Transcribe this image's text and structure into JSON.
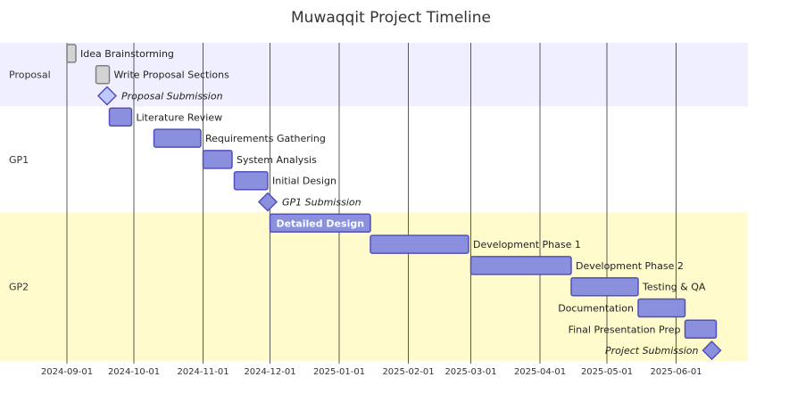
{
  "title": "Muwaqqit Project Timeline",
  "axis": {
    "ticks": [
      "2024-09-01",
      "2024-10-01",
      "2024-11-01",
      "2024-12-01",
      "2025-01-01",
      "2025-02-01",
      "2025-03-01",
      "2025-04-01",
      "2025-05-01",
      "2025-06-01"
    ]
  },
  "colors": {
    "section_proposal": "#efefff",
    "section_gp1": "#ffffff",
    "section_gp2": "#fffbcc",
    "done_fill": "#d3d3d3",
    "done_stroke": "#808080",
    "active_fill": "#8a90dd",
    "active_stroke": "#534fbc",
    "milestone_proposal_fill": "#bfc7ff"
  },
  "sections": [
    {
      "name": "Proposal",
      "color_key": "section_proposal"
    },
    {
      "name": "GP1",
      "color_key": "section_gp1"
    },
    {
      "name": "GP2",
      "color_key": "section_gp2"
    }
  ],
  "chart_data": {
    "type": "gantt",
    "tasks": [
      {
        "name": "Idea Brainstorming",
        "section": "Proposal",
        "start": "2024-09-01",
        "end": "2024-09-05",
        "status": "done",
        "milestone": false
      },
      {
        "name": "Write Proposal Sections",
        "section": "Proposal",
        "start": "2024-09-14",
        "end": "2024-09-20",
        "status": "done",
        "milestone": false
      },
      {
        "name": "Proposal Submission",
        "section": "Proposal",
        "date": "2024-09-19",
        "status": "done",
        "milestone": true
      },
      {
        "name": "Literature Review",
        "section": "GP1",
        "start": "2024-09-20",
        "end": "2024-09-30",
        "status": "active",
        "milestone": false
      },
      {
        "name": "Requirements Gathering",
        "section": "GP1",
        "start": "2024-10-10",
        "end": "2024-10-31",
        "status": "active",
        "milestone": false
      },
      {
        "name": "System Analysis",
        "section": "GP1",
        "start": "2024-11-01",
        "end": "2024-11-14",
        "status": "active",
        "milestone": false
      },
      {
        "name": "Initial Design",
        "section": "GP1",
        "start": "2024-11-15",
        "end": "2024-11-30",
        "status": "active",
        "milestone": false
      },
      {
        "name": "GP1 Submission",
        "section": "GP1",
        "date": "2024-11-30",
        "status": "active",
        "milestone": true
      },
      {
        "name": "Detailed Design",
        "section": "GP2",
        "start": "2024-12-01",
        "end": "2025-01-15",
        "status": "active",
        "milestone": false
      },
      {
        "name": "Development Phase 1",
        "section": "GP2",
        "start": "2025-01-15",
        "end": "2025-02-28",
        "status": "active",
        "milestone": false
      },
      {
        "name": "Development Phase 2",
        "section": "GP2",
        "start": "2025-03-01",
        "end": "2025-04-15",
        "status": "active",
        "milestone": false
      },
      {
        "name": "Testing & QA",
        "section": "GP2",
        "start": "2025-04-15",
        "end": "2025-05-15",
        "status": "active",
        "milestone": false
      },
      {
        "name": "Documentation",
        "section": "GP2",
        "start": "2025-05-15",
        "end": "2025-06-05",
        "status": "active",
        "milestone": false
      },
      {
        "name": "Final Presentation Prep",
        "section": "GP2",
        "start": "2025-06-05",
        "end": "2025-06-19",
        "status": "active",
        "milestone": false
      },
      {
        "name": "Project Submission",
        "section": "GP2",
        "date": "2025-06-17",
        "status": "active",
        "milestone": true
      }
    ]
  }
}
